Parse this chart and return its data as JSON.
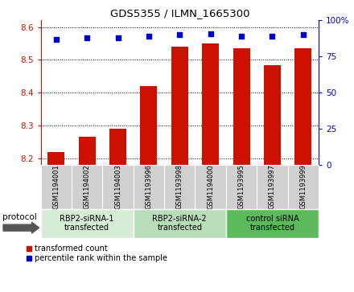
{
  "title": "GDS5355 / ILMN_1665300",
  "samples": [
    "GSM1194001",
    "GSM1194002",
    "GSM1194003",
    "GSM1193996",
    "GSM1193998",
    "GSM1194000",
    "GSM1193995",
    "GSM1193997",
    "GSM1193999"
  ],
  "transformed_counts": [
    8.22,
    8.265,
    8.29,
    8.42,
    8.54,
    8.55,
    8.535,
    8.485,
    8.535
  ],
  "percentile_ranks": [
    87,
    88,
    88,
    89,
    90,
    91,
    89,
    89,
    90
  ],
  "groups": [
    {
      "label": "RBP2-siRNA-1\ntransfected",
      "indices": [
        0,
        1,
        2
      ],
      "color": "#d6ecd6"
    },
    {
      "label": "RBP2-siRNA-2\ntransfected",
      "indices": [
        3,
        4,
        5
      ],
      "color": "#b8ddb8"
    },
    {
      "label": "control siRNA\ntransfected",
      "indices": [
        6,
        7,
        8
      ],
      "color": "#5cba5c"
    }
  ],
  "bar_color": "#cc1100",
  "dot_color": "#0000cc",
  "ylim_left": [
    8.18,
    8.62
  ],
  "ylim_right": [
    0,
    100
  ],
  "yticks_left": [
    8.2,
    8.3,
    8.4,
    8.5,
    8.6
  ],
  "yticks_right": [
    0,
    25,
    50,
    75,
    100
  ],
  "sample_bg_color": "#d0d0d0",
  "sample_edge_color": "#ffffff",
  "bar_bottom": 8.18,
  "bar_width": 0.55,
  "legend_red_label": "transformed count",
  "legend_blue_label": "percentile rank within the sample",
  "protocol_label": "protocol"
}
